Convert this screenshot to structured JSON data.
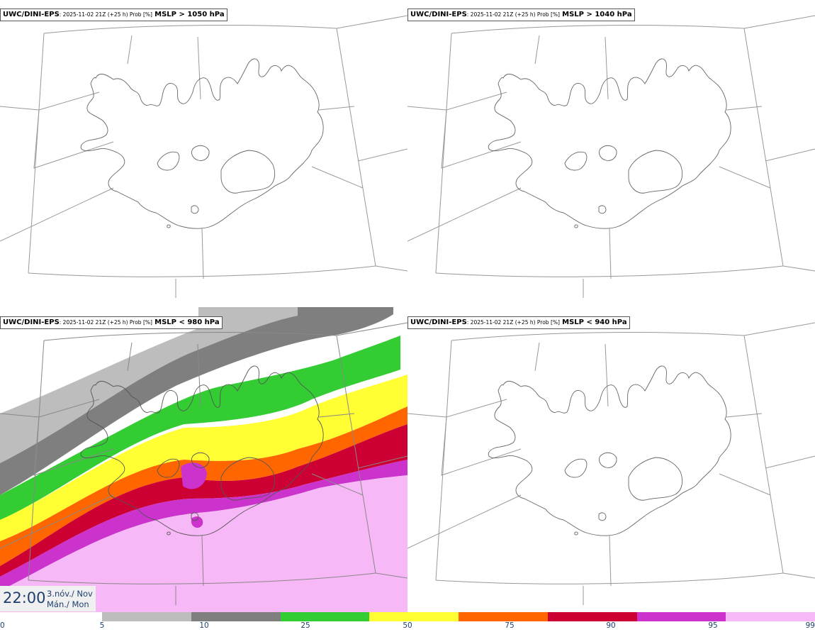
{
  "panels": [
    {
      "model": "UWC/DINI-EPS",
      "run": ": 2025-11-02 21Z (+25 h) Prob [%]",
      "field": "MSLP > 1050 hPa"
    },
    {
      "model": "UWC/DINI-EPS",
      "run": ": 2025-11-02 21Z (+25 h) Prob [%]",
      "field": "MSLP > 1040 hPa"
    },
    {
      "model": "UWC/DINI-EPS",
      "run": ": 2025-11-02 21Z (+25 h) Prob [%]",
      "field": "MSLP < 980 hPa"
    },
    {
      "model": "UWC/DINI-EPS",
      "run": ": 2025-11-02 21Z (+25 h) Prob [%]",
      "field": "MSLP < 940 hPa"
    }
  ],
  "valid_time": {
    "time": "22:00",
    "date": "3.nóv./ Nov",
    "weekday": "Mán./ Mon"
  },
  "legend": {
    "ticks": [
      "0",
      "5",
      "10",
      "25",
      "50",
      "75",
      "90",
      "95",
      "99"
    ],
    "colors": [
      "#bdbdbd",
      "#7f7f7f",
      "#33cc33",
      "#ffff33",
      "#ff6600",
      "#cc0033",
      "#cc33cc",
      "#f7b8f7"
    ]
  },
  "probability_shading": {
    "panel": "MSLP < 980 hPa",
    "bands": [
      {
        "range": "5-10",
        "color": "#bdbdbd"
      },
      {
        "range": "10-25",
        "color": "#7f7f7f"
      },
      {
        "range": "25-50",
        "color": "#33cc33"
      },
      {
        "range": "50-75",
        "color": "#ffff33"
      },
      {
        "range": "75-90",
        "color": "#ff6600"
      },
      {
        "range": "90-95",
        "color": "#cc0033"
      },
      {
        "range": "95-99",
        "color": "#cc33cc"
      },
      {
        "range": ">99",
        "color": "#f7b8f7"
      }
    ]
  }
}
